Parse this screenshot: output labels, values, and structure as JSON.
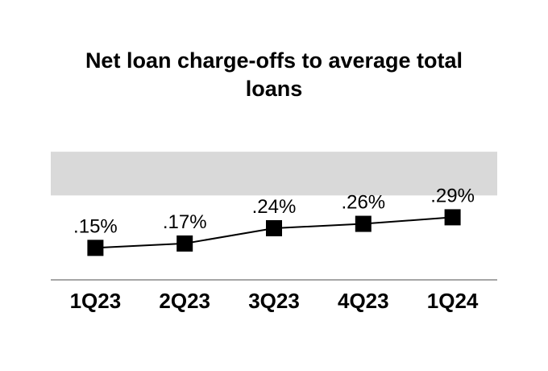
{
  "title": "Net loan charge-offs to average total loans",
  "chart_data": {
    "type": "line",
    "title": "Net loan charge-offs to average total loans",
    "categories": [
      "1Q23",
      "2Q23",
      "3Q23",
      "4Q23",
      "1Q24"
    ],
    "series": [
      {
        "name": "Net loan charge-offs to average total loans",
        "values": [
          0.15,
          0.17,
          0.24,
          0.26,
          0.29
        ],
        "point_labels": [
          ".15%",
          ".17%",
          ".24%",
          ".26%",
          ".29%"
        ]
      }
    ],
    "unit": "percent",
    "xlabel": "",
    "ylabel": "",
    "ylim": [
      0,
      0.62
    ],
    "grid": false,
    "legend": "none",
    "y_axis_visible": false,
    "marker": "square",
    "colors": {
      "line": "#000000",
      "marker": "#000000",
      "labels": "#000000",
      "x_axis_line": "#a6a6a6",
      "highlight_band": "#d9d9d9",
      "background": "#ffffff"
    },
    "highlight_band": {
      "from": 0.39,
      "to": 0.59
    }
  }
}
